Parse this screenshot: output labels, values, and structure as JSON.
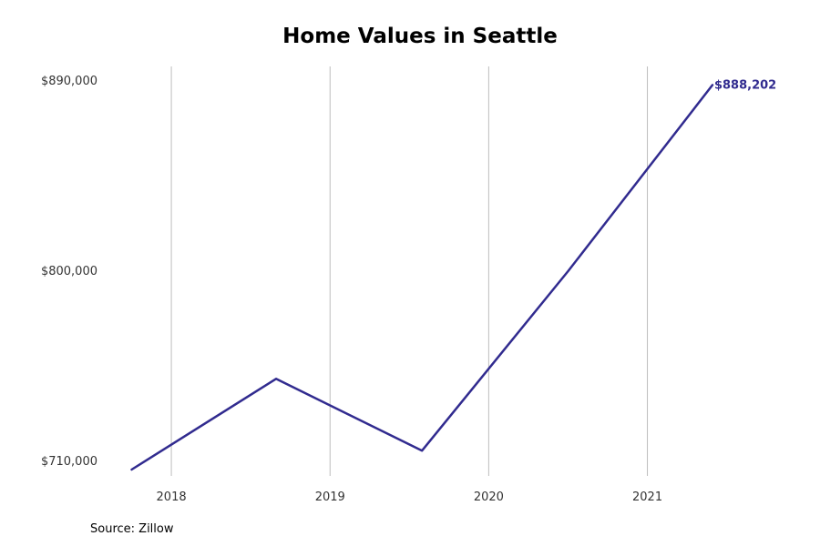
{
  "chart_data": {
    "type": "line",
    "title": "Home Values in Seattle",
    "xlabel": "",
    "ylabel": "",
    "x_ticks": [
      2018,
      2019,
      2020,
      2021
    ],
    "y_ticks": [
      {
        "value": 710000,
        "label": "$710,000"
      },
      {
        "value": 800000,
        "label": "$800,000"
      },
      {
        "value": 890000,
        "label": "$890,000"
      }
    ],
    "xlim": [
      2017.5,
      2021.95
    ],
    "ylim": [
      703000,
      897000
    ],
    "grid": "vertical",
    "series": [
      {
        "color": "#312b8f",
        "points": [
          {
            "x": 2017.75,
            "y": 706000
          },
          {
            "x": 2018.66,
            "y": 749000
          },
          {
            "x": 2019.58,
            "y": 715000
          },
          {
            "x": 2020.5,
            "y": 800000
          },
          {
            "x": 2021.41,
            "y": 888202
          }
        ]
      }
    ],
    "annotations": [
      {
        "text": "$888,202",
        "x": 2021.41,
        "y": 888202
      }
    ]
  },
  "source": "Source: Zillow"
}
